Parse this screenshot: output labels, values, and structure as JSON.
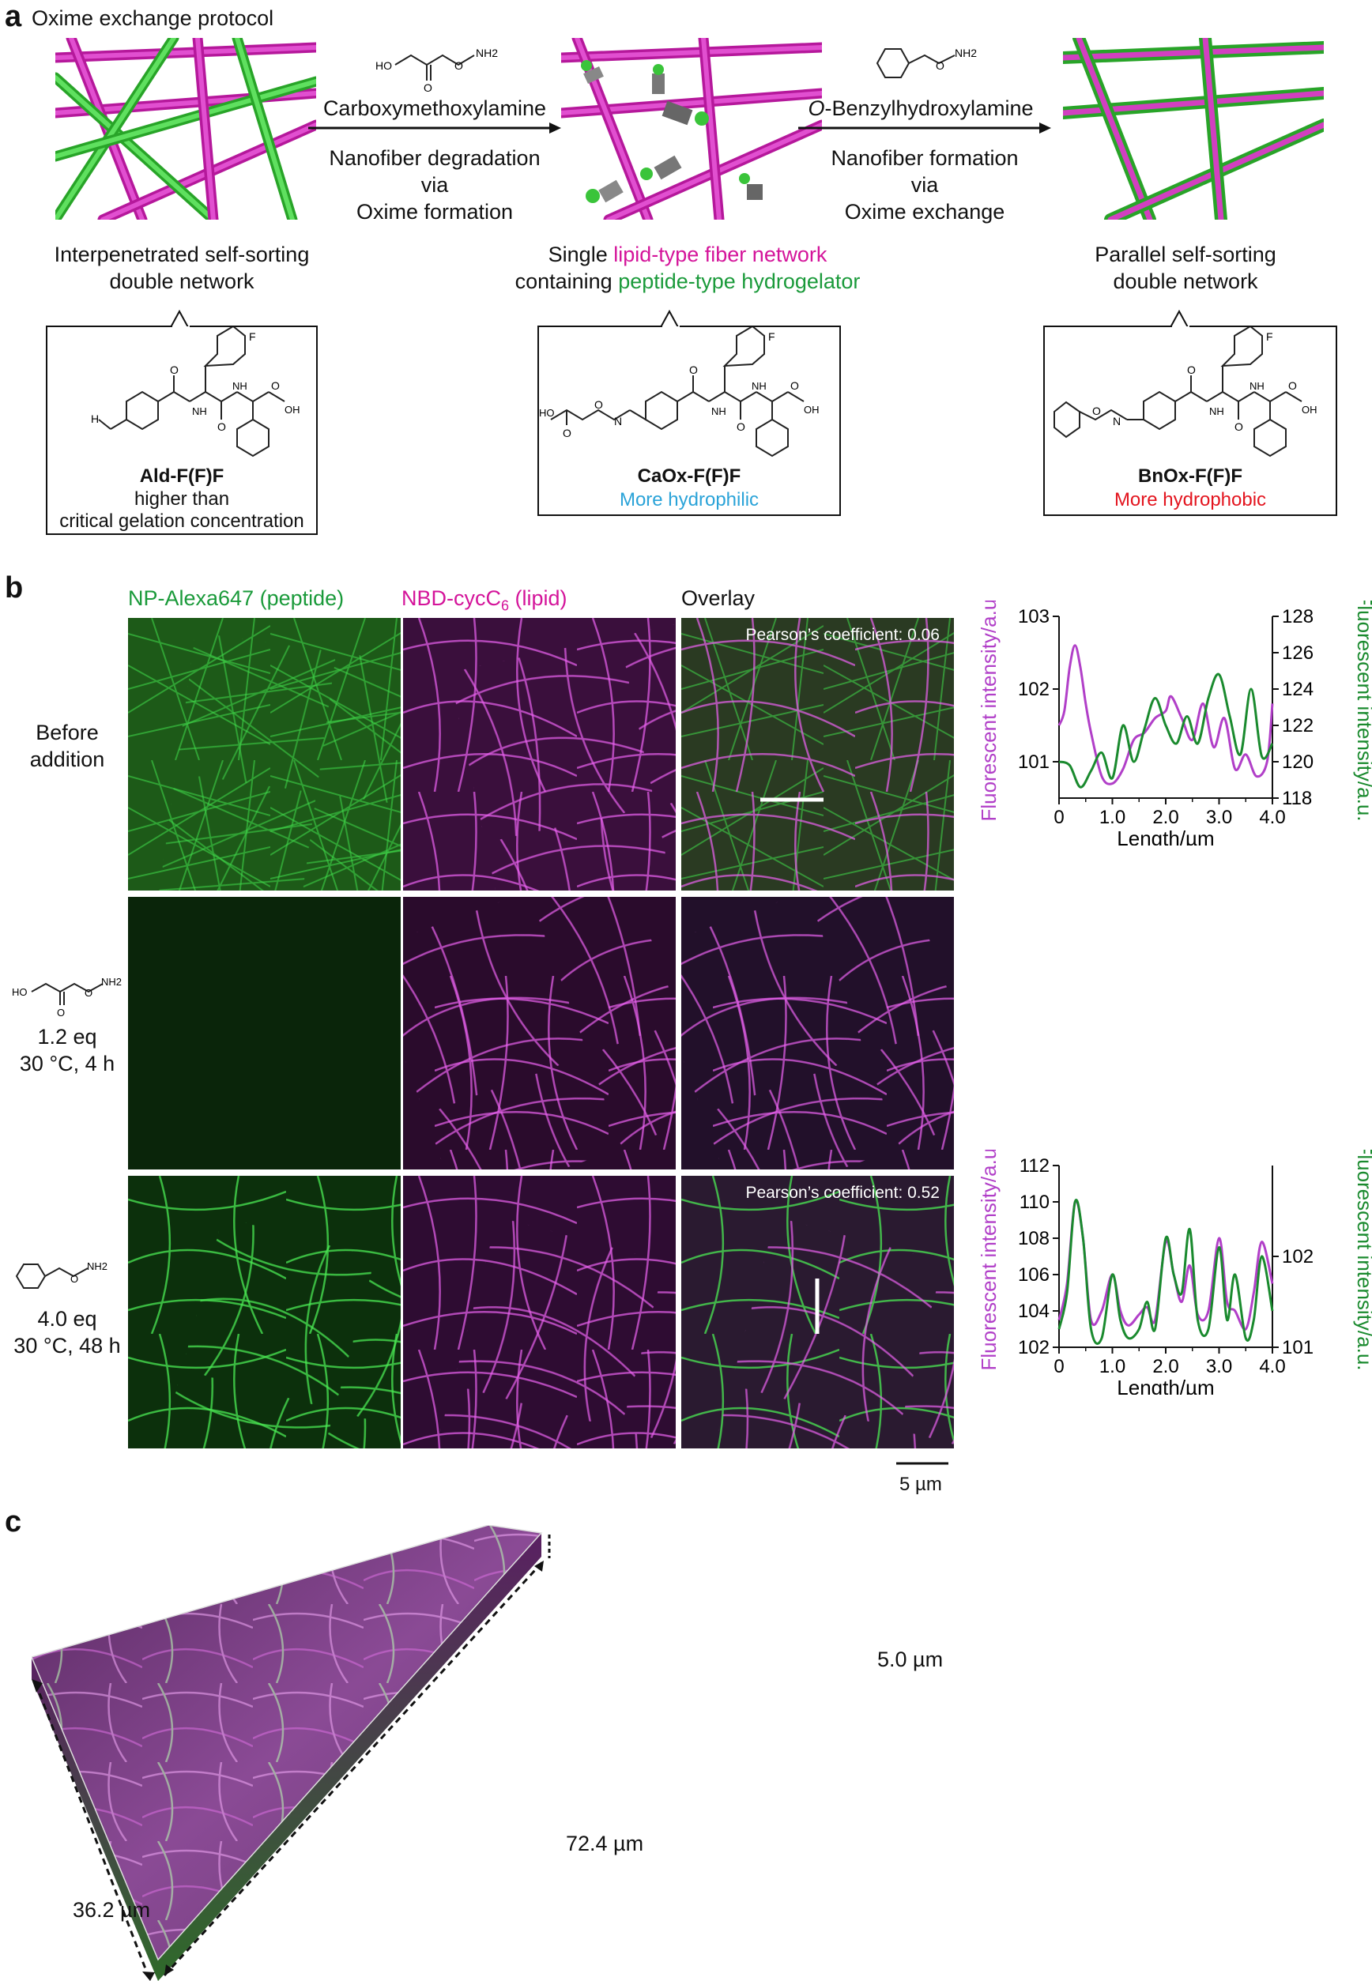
{
  "panel_a": {
    "letter": "a",
    "title": "Oxime exchange protocol",
    "step1": {
      "reagent": "Carboxymethoxylamine",
      "line1": "Nanofiber degradation",
      "line2": "via",
      "line3": "Oxime formation"
    },
    "step2": {
      "reagent_prefix": "O",
      "reagent_rest": "-Benzylhydroxylamine",
      "line1": "Nanofiber formation",
      "line2": "via",
      "line3": "Oxime exchange"
    },
    "state1": {
      "line1": "Interpenetrated self-sorting",
      "line2": "double network"
    },
    "state2": {
      "line1_pre": "Single ",
      "line1_colored": "lipid-type fiber network",
      "line2_pre": "containing ",
      "line2_colored": "peptide-type hydrogelator"
    },
    "state3": {
      "line1": "Parallel self-sorting",
      "line2": "double network"
    },
    "compound1": {
      "name": "Ald-F(F)F",
      "note1": "higher than",
      "note2": "critical gelation concentration"
    },
    "compound2": {
      "name": "CaOx-F(F)F",
      "note": "More hydrophilic"
    },
    "compound3": {
      "name": "BnOx-F(F)F",
      "note": "More hydrophobic"
    },
    "chem_labels": {
      "F": "F",
      "O": "O",
      "N": "N",
      "H": "H",
      "NH": "NH",
      "OH": "OH",
      "HO": "HO",
      "NH2": "NH2"
    }
  },
  "panel_b": {
    "letter": "b",
    "col_headers": {
      "green": "NP-Alexa647 (peptide)",
      "magenta_pre": "NBD-cycC",
      "magenta_sub": "6",
      "magenta_post": " (lipid)",
      "overlay": "Overlay"
    },
    "rows": [
      {
        "label1": "Before",
        "label2": "addition"
      },
      {
        "label1": "1.2 eq",
        "label2": "30 °C, 4 h"
      },
      {
        "label1": "4.0 eq",
        "label2": "30 °C, 48 h"
      }
    ],
    "pearson_1": "Pearson’s coefficient: 0.06",
    "pearson_3": "Pearson’s coefficient: 0.52",
    "scalebar": "5 µm",
    "colors": {
      "green": "#1a8a2e",
      "magenta": "#b13fc8"
    }
  },
  "panel_c": {
    "letter": "c",
    "dim_depth": "5.0 µm",
    "dim_width": "72.4 µm",
    "dim_height": "36.2 µm"
  },
  "chart_data": [
    {
      "type": "line",
      "xlabel": "Length/µm",
      "ylabel_left": "Fluorescent intensity/a.u.",
      "ylabel_right": "Fluorescent intensity/a.u.",
      "xlim": [
        0,
        4.0
      ],
      "xticks": [
        "0",
        "1.0",
        "2.0",
        "3.0",
        "4.0"
      ],
      "ylim_left": [
        100.5,
        103
      ],
      "yticks_left": [
        "101",
        "102",
        "103"
      ],
      "ylim_right": [
        118,
        128
      ],
      "yticks_right": [
        "118",
        "120",
        "122",
        "124",
        "126",
        "128"
      ],
      "series": [
        {
          "axis": "left",
          "color": "#b13fc8",
          "x": [
            0,
            0.1,
            0.2,
            0.3,
            0.4,
            0.5,
            0.6,
            0.8,
            1.0,
            1.2,
            1.4,
            1.6,
            1.8,
            2.0,
            2.1,
            2.3,
            2.5,
            2.7,
            2.9,
            3.1,
            3.3,
            3.5,
            3.7,
            3.9,
            4.0
          ],
          "y": [
            101.5,
            101.7,
            102.3,
            102.6,
            102.3,
            101.8,
            101.4,
            100.8,
            100.7,
            100.9,
            101.3,
            101.4,
            101.6,
            101.7,
            101.9,
            101.6,
            101.3,
            101.8,
            101.2,
            101.6,
            100.9,
            101.1,
            100.8,
            101.0,
            101.8
          ]
        },
        {
          "axis": "right",
          "color": "#1a8a2e",
          "x": [
            0,
            0.2,
            0.4,
            0.6,
            0.8,
            1.0,
            1.2,
            1.4,
            1.6,
            1.8,
            2.0,
            2.2,
            2.4,
            2.6,
            2.8,
            3.0,
            3.2,
            3.4,
            3.6,
            3.8,
            4.0
          ],
          "y": [
            120.0,
            119.8,
            118.6,
            119.5,
            120.5,
            119.1,
            122.0,
            120.0,
            121.8,
            123.5,
            122.0,
            121.0,
            122.5,
            121.0,
            123.5,
            124.8,
            122.5,
            120.4,
            124.0,
            120.3,
            121.0
          ]
        }
      ]
    },
    {
      "type": "line",
      "xlabel": "Length/µm",
      "ylabel_left": "Fluorescent intensity/a.u.",
      "ylabel_right": "Fluorescent intensity/a.u.",
      "xlim": [
        0,
        4.0
      ],
      "xticks": [
        "0",
        "1.0",
        "2.0",
        "3.0",
        "4.0"
      ],
      "ylim_left": [
        102,
        112
      ],
      "yticks_left": [
        "102",
        "104",
        "106",
        "108",
        "110",
        "112"
      ],
      "ylim_right": [
        101,
        103
      ],
      "yticks_right": [
        "101",
        "102"
      ],
      "series": [
        {
          "axis": "left",
          "color": "#b13fc8",
          "x": [
            0,
            0.15,
            0.3,
            0.45,
            0.6,
            0.8,
            1.0,
            1.15,
            1.3,
            1.5,
            1.65,
            1.8,
            2.0,
            2.15,
            2.3,
            2.45,
            2.6,
            2.8,
            3.0,
            3.15,
            3.3,
            3.5,
            3.65,
            3.8,
            4.0
          ],
          "y": [
            103.5,
            105.5,
            110.0,
            108.0,
            103.5,
            104.0,
            106.0,
            104.0,
            103.2,
            103.8,
            104.2,
            103.5,
            107.8,
            106.0,
            104.5,
            106.5,
            103.8,
            104.0,
            108.0,
            104.5,
            104.0,
            103.0,
            105.0,
            107.8,
            105.5
          ]
        },
        {
          "axis": "right",
          "color": "#1a8a2e",
          "x": [
            0,
            0.15,
            0.3,
            0.45,
            0.6,
            0.8,
            1.0,
            1.15,
            1.3,
            1.5,
            1.65,
            1.8,
            2.0,
            2.15,
            2.3,
            2.45,
            2.6,
            2.8,
            3.0,
            3.15,
            3.3,
            3.5,
            3.65,
            3.8,
            4.0
          ],
          "y": [
            101.2,
            101.6,
            102.6,
            102.2,
            101.2,
            101.1,
            101.8,
            101.3,
            101.1,
            101.2,
            101.5,
            101.2,
            102.2,
            101.8,
            101.6,
            102.3,
            101.3,
            101.2,
            102.1,
            101.3,
            101.8,
            101.1,
            101.3,
            102.0,
            101.4
          ]
        }
      ]
    }
  ]
}
